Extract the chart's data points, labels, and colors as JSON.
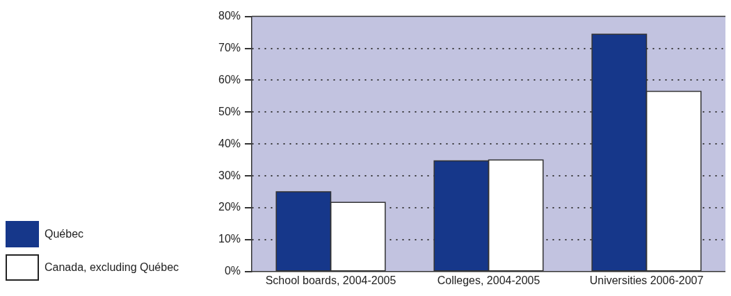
{
  "chart_data": {
    "type": "bar",
    "categories": [
      "School boards, 2004-2005",
      "Colleges, 2004-2005",
      "Universities 2006-2007"
    ],
    "series": [
      {
        "name": "Québec",
        "color": "#16378a",
        "values": [
          25,
          34.7,
          74.4
        ]
      },
      {
        "name": "Canada, excluding Québec",
        "color": "#ffffff",
        "values": [
          21.7,
          35,
          56.5
        ]
      }
    ],
    "ylim": [
      0,
      80
    ],
    "yticks": [
      {
        "value": 0,
        "label": "0%"
      },
      {
        "value": 10,
        "label": "10%"
      },
      {
        "value": 20,
        "label": "20%"
      },
      {
        "value": 30,
        "label": "30%"
      },
      {
        "value": 40,
        "label": "40%"
      },
      {
        "value": 50,
        "label": "50%"
      },
      {
        "value": 60,
        "label": "60%"
      },
      {
        "value": 70,
        "label": "70%"
      },
      {
        "value": 80,
        "label": "80%"
      }
    ],
    "grid": "y",
    "legend": "left"
  }
}
